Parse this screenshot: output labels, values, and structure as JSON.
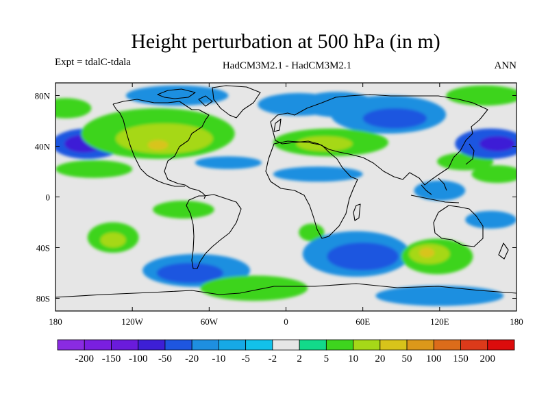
{
  "header": {
    "title": "Height perturbation at 500 hPa (in m)",
    "left": "Expt = tdalC-tdala",
    "center": "HadCM3M2.1 - HadCM3M2.1",
    "right": "ANN"
  },
  "chart_data": {
    "type": "heatmap",
    "title": "Height perturbation at 500 hPa (in m)",
    "subtitle": "HadCM3M2.1 - HadCM3M2.1",
    "xlabel": "",
    "ylabel": "",
    "xlim": [
      -180,
      180
    ],
    "ylim": [
      -90,
      90
    ],
    "x_ticks": [
      {
        "value": -180,
        "label": "180"
      },
      {
        "value": -120,
        "label": "120W"
      },
      {
        "value": -60,
        "label": "60W"
      },
      {
        "value": 0,
        "label": "0"
      },
      {
        "value": 60,
        "label": "60E"
      },
      {
        "value": 120,
        "label": "120E"
      },
      {
        "value": 180,
        "label": "180"
      }
    ],
    "y_ticks": [
      {
        "value": 80,
        "label": "80N"
      },
      {
        "value": 40,
        "label": "40N"
      },
      {
        "value": 0,
        "label": "0"
      },
      {
        "value": -40,
        "label": "40S"
      },
      {
        "value": -80,
        "label": "80S"
      }
    ],
    "colorbar": {
      "levels": [
        "-200",
        "-150",
        "-100",
        "-50",
        "-20",
        "-10",
        "-5",
        "-2",
        "2",
        "5",
        "10",
        "20",
        "50",
        "100",
        "150",
        "200"
      ],
      "colors": [
        "#8a2be2",
        "#7a1fe0",
        "#6a1bdc",
        "#3d1fd6",
        "#1e56e0",
        "#1e8fe0",
        "#16a9e6",
        "#12c1e9",
        "#e6e6e6",
        "#12da8a",
        "#3ed41e",
        "#a6d818",
        "#d8c41a",
        "#dc981a",
        "#dc6c1a",
        "#dc3a1a",
        "#dc0c0c"
      ]
    },
    "regions": [
      {
        "lon": -155,
        "lat": 42,
        "rx": 28,
        "ry": 12,
        "level": -10
      },
      {
        "lon": -158,
        "lat": 42,
        "rx": 15,
        "ry": 7,
        "level": -20
      },
      {
        "lon": -150,
        "lat": 22,
        "rx": 30,
        "ry": 7,
        "level": 5
      },
      {
        "lon": -172,
        "lat": 70,
        "rx": 20,
        "ry": 8,
        "level": 5
      },
      {
        "lon": -100,
        "lat": 50,
        "rx": 60,
        "ry": 20,
        "level": 5
      },
      {
        "lon": -95,
        "lat": 46,
        "rx": 38,
        "ry": 12,
        "level": 10
      },
      {
        "lon": -100,
        "lat": 41,
        "rx": 8,
        "ry": 4,
        "level": 20
      },
      {
        "lon": -85,
        "lat": 80,
        "rx": 40,
        "ry": 8,
        "level": -5
      },
      {
        "lon": -45,
        "lat": 27,
        "rx": 26,
        "ry": 5,
        "level": -5
      },
      {
        "lon": -135,
        "lat": -32,
        "rx": 20,
        "ry": 12,
        "level": 5
      },
      {
        "lon": -135,
        "lat": -34,
        "rx": 10,
        "ry": 6,
        "level": 10
      },
      {
        "lon": -80,
        "lat": -10,
        "rx": 24,
        "ry": 7,
        "level": 5
      },
      {
        "lon": -70,
        "lat": -58,
        "rx": 42,
        "ry": 13,
        "level": -5
      },
      {
        "lon": -75,
        "lat": -60,
        "rx": 26,
        "ry": 8,
        "level": -10
      },
      {
        "lon": -25,
        "lat": -72,
        "rx": 42,
        "ry": 10,
        "level": 5
      },
      {
        "lon": 10,
        "lat": 73,
        "rx": 32,
        "ry": 9,
        "level": -5
      },
      {
        "lon": 40,
        "lat": 73,
        "rx": 30,
        "ry": 10,
        "level": -5
      },
      {
        "lon": 80,
        "lat": 65,
        "rx": 45,
        "ry": 15,
        "level": -5
      },
      {
        "lon": 85,
        "lat": 62,
        "rx": 25,
        "ry": 8,
        "level": -10
      },
      {
        "lon": 35,
        "lat": 43,
        "rx": 45,
        "ry": 11,
        "level": 5
      },
      {
        "lon": 30,
        "lat": 42,
        "rx": 22,
        "ry": 6,
        "level": 10
      },
      {
        "lon": 25,
        "lat": 18,
        "rx": 35,
        "ry": 6,
        "level": -5
      },
      {
        "lon": 140,
        "lat": 28,
        "rx": 22,
        "ry": 7,
        "level": 5
      },
      {
        "lon": 160,
        "lat": 42,
        "rx": 28,
        "ry": 12,
        "level": -10
      },
      {
        "lon": 165,
        "lat": 42,
        "rx": 14,
        "ry": 6,
        "level": -20
      },
      {
        "lon": 155,
        "lat": 80,
        "rx": 30,
        "ry": 8,
        "level": 5
      },
      {
        "lon": 165,
        "lat": 18,
        "rx": 20,
        "ry": 7,
        "level": 5
      },
      {
        "lon": 120,
        "lat": 5,
        "rx": 20,
        "ry": 8,
        "level": -5
      },
      {
        "lon": 20,
        "lat": -28,
        "rx": 10,
        "ry": 7,
        "level": 5
      },
      {
        "lon": 55,
        "lat": -45,
        "rx": 42,
        "ry": 18,
        "level": -5
      },
      {
        "lon": 60,
        "lat": -47,
        "rx": 28,
        "ry": 11,
        "level": -10
      },
      {
        "lon": 118,
        "lat": -47,
        "rx": 28,
        "ry": 14,
        "level": 5
      },
      {
        "lon": 112,
        "lat": -45,
        "rx": 16,
        "ry": 8,
        "level": 10
      },
      {
        "lon": 110,
        "lat": -44,
        "rx": 6,
        "ry": 4,
        "level": 20
      },
      {
        "lon": 120,
        "lat": -78,
        "rx": 50,
        "ry": 8,
        "level": -5
      },
      {
        "lon": 160,
        "lat": -18,
        "rx": 20,
        "ry": 7,
        "level": -5
      }
    ]
  }
}
